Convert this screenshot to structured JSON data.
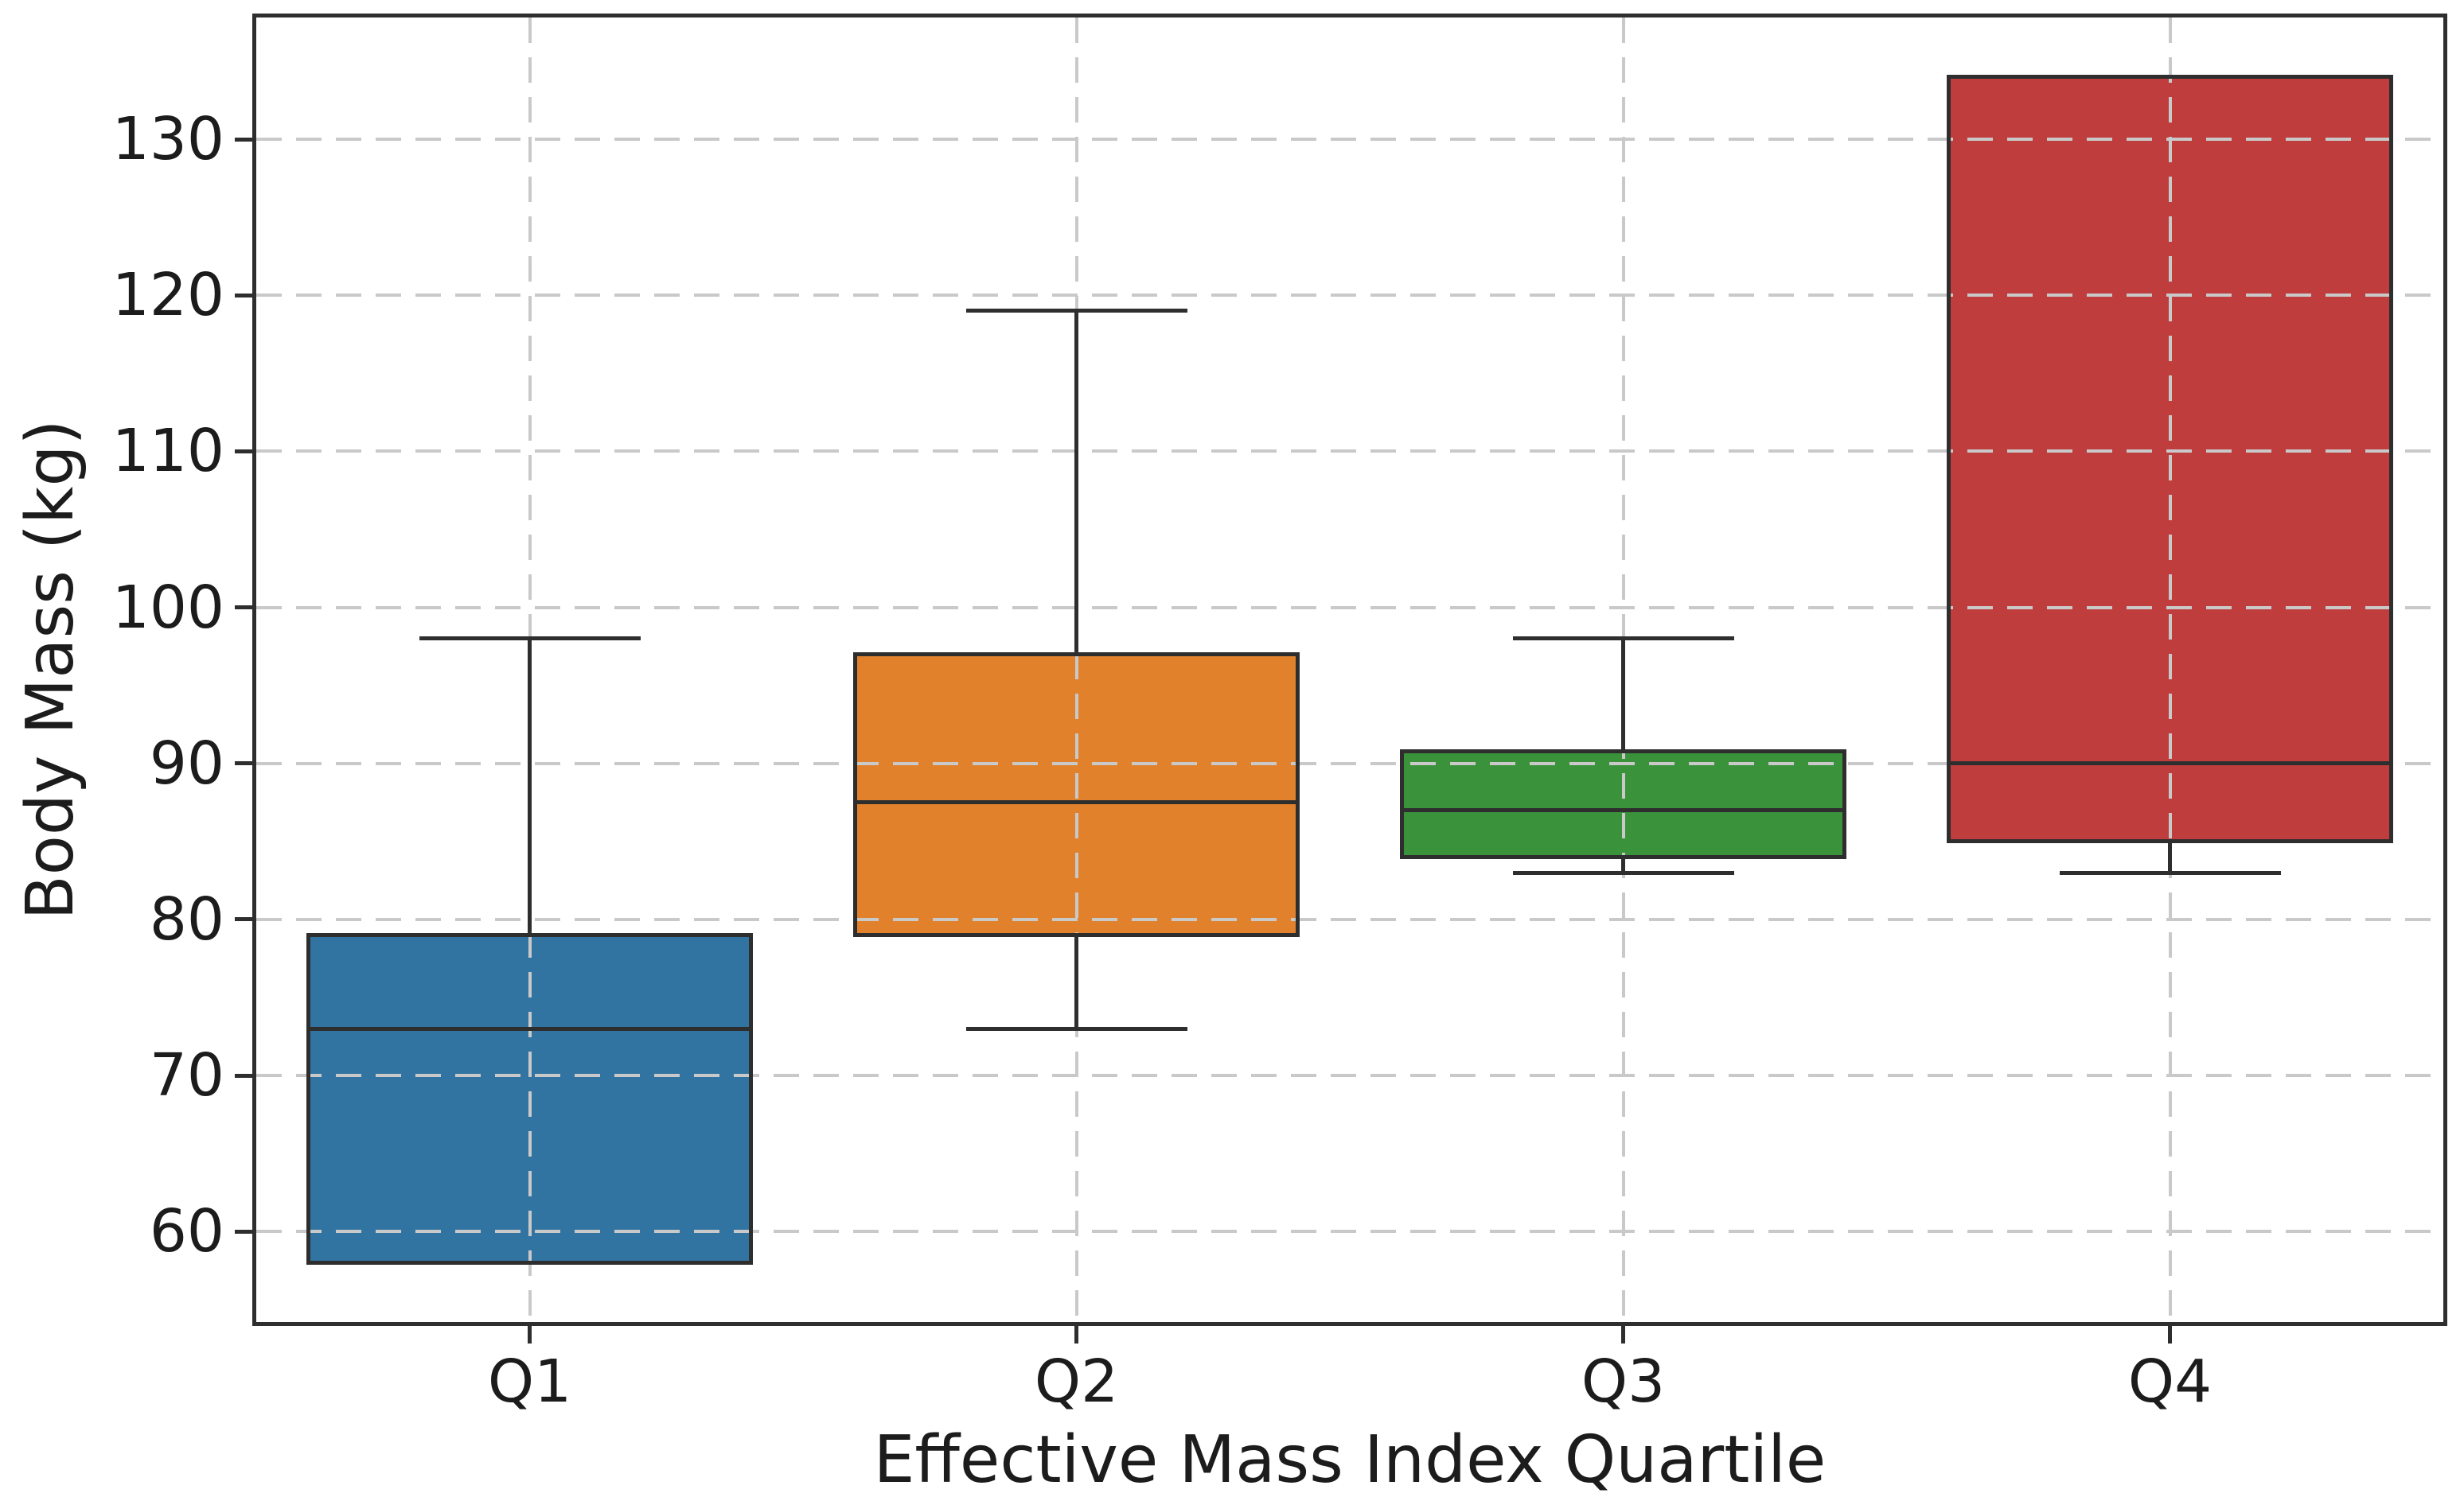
{
  "figure": {
    "background": "#ffffff",
    "title": ""
  },
  "chart_data": {
    "type": "boxplot",
    "title": "",
    "xlabel": "Effective Mass Index Quartile",
    "ylabel": "Body Mass (kg)",
    "categories": [
      "Q1",
      "Q2",
      "Q3",
      "Q4"
    ],
    "y_ticks": [
      60,
      70,
      80,
      90,
      100,
      110,
      120,
      130
    ],
    "ylim": [
      54.2,
      137.8
    ],
    "grid": {
      "visible": true,
      "style": "dashed",
      "color": "#c9c9c9",
      "axes": "both",
      "drawn_over_boxes": true
    },
    "legend": "none",
    "line_color": "#2e2e2e",
    "boxes": [
      {
        "label": "Q1",
        "fill_color": "#3274a1",
        "whisker_low": 58,
        "q1": 58,
        "median": 73,
        "q3": 79,
        "whisker_high": 98
      },
      {
        "label": "Q2",
        "fill_color": "#e1812c",
        "whisker_low": 73,
        "q1": 79,
        "median": 87.5,
        "q3": 97,
        "whisker_high": 119
      },
      {
        "label": "Q3",
        "fill_color": "#3a923a",
        "whisker_low": 83,
        "q1": 84,
        "median": 87,
        "q3": 90.75,
        "whisker_high": 98
      },
      {
        "label": "Q4",
        "fill_color": "#c03d3e",
        "whisker_low": 83,
        "q1": 85,
        "median": 90,
        "q3": 134,
        "whisker_high": 134
      }
    ]
  }
}
